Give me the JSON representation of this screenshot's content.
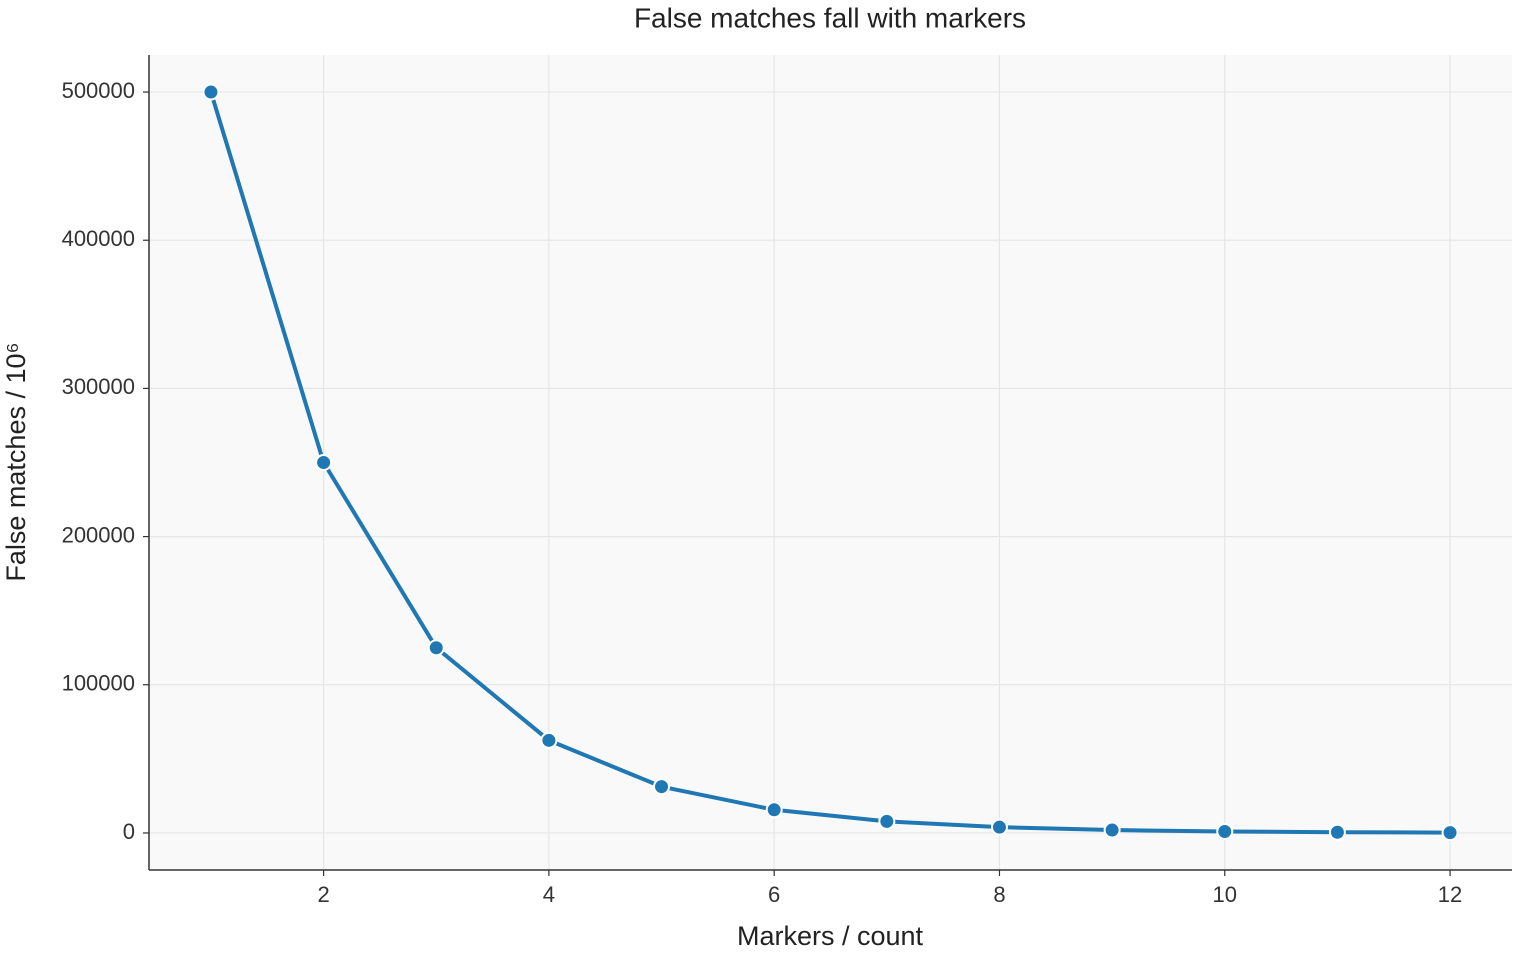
{
  "chart_data": {
    "type": "line",
    "title": "False matches fall with markers",
    "xlabel": "Markers / count",
    "ylabel": "False matches / 10⁶",
    "x": [
      1,
      2,
      3,
      4,
      5,
      6,
      7,
      8,
      9,
      10,
      11,
      12
    ],
    "series": [
      {
        "name": "False matches",
        "color": "#1f77b4",
        "values": [
          500000,
          250000,
          125000,
          62500,
          31250,
          15625,
          7813,
          3906,
          1953,
          977,
          488,
          244
        ]
      }
    ],
    "xlim": [
      0.45,
      12.55
    ],
    "xticks": [
      2,
      4,
      6,
      8,
      10,
      12
    ],
    "ylim": [
      -25000,
      525000
    ],
    "yticks": [
      0,
      100000,
      200000,
      300000,
      400000,
      500000
    ],
    "grid": true
  }
}
